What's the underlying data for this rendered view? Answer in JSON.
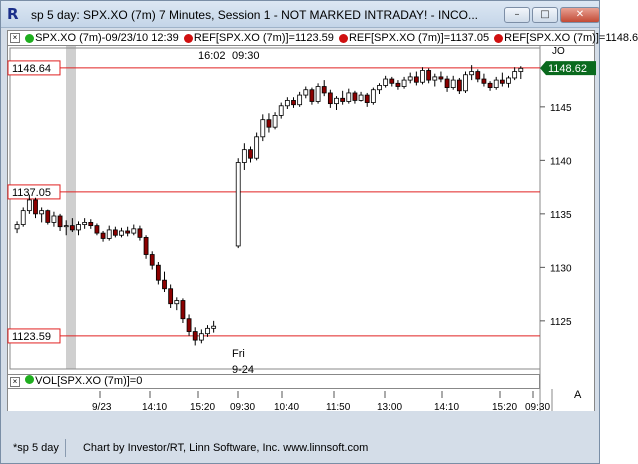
{
  "window": {
    "title": "sp 5 day: SPX.XO (7m) 7 Minutes, Session 1 - NOT MARKED INTRADAY! - INCO...",
    "minimize": "–",
    "maximize": "□",
    "close": "✕",
    "icon": "R"
  },
  "legend": {
    "items": [
      {
        "text": "SPX.XO (7m)-09/23/10 12:39",
        "dot": "#1fae1f"
      },
      {
        "text": "REF[SPX.XO (7m)]=1123.59",
        "dot": "#d01010"
      },
      {
        "text": "REF[SPX.XO (7m)]=1137.05",
        "dot": "#d01010"
      },
      {
        "text": "REF[SPX.XO (7m)]=1148.6",
        "dot": "#d01010"
      }
    ],
    "close_glyph": "×",
    "end_label": "JO"
  },
  "volume": {
    "label": "VOL[SPX.XO (7m)]=0",
    "dot": "#1fae1f",
    "corner_label": "A"
  },
  "status": {
    "tab": "*sp 5 day",
    "credit": "Chart by Investor/RT, Linn Software, Inc. www.linnsoft.com"
  },
  "colors": {
    "up": "#ffffff",
    "down": "#8b0000",
    "ref_line": "#e02020",
    "accent_green": "#1fae1f"
  },
  "annotations": {
    "top_time": "16:02",
    "top_time2": "09:30",
    "day": "Fri",
    "date": "9-24"
  },
  "chart_data": {
    "type": "candlestick",
    "y_ticks": [
      1125,
      1130,
      1135,
      1140,
      1145
    ],
    "ylim": [
      1120.5,
      1150.5
    ],
    "x_ticks": [
      "9/23",
      "14:10",
      "15:20",
      "09:30",
      "10:40",
      "11:50",
      "13:00",
      "14:10",
      "15:20",
      "09:30"
    ],
    "reference_lines": [
      {
        "value": 1148.64,
        "label": "1148.64"
      },
      {
        "value": 1137.05,
        "label": "1137.05"
      },
      {
        "value": 1123.59,
        "label": "1123.59"
      }
    ],
    "last_price": {
      "value": 1148.62,
      "label": "1148.62"
    },
    "candles": [
      [
        1133.6,
        1134.3,
        1133.2,
        1134.0
      ],
      [
        1134.0,
        1135.6,
        1133.8,
        1135.3
      ],
      [
        1135.3,
        1136.8,
        1135.0,
        1136.3
      ],
      [
        1136.3,
        1136.5,
        1134.6,
        1135.0
      ],
      [
        1135.0,
        1135.6,
        1134.2,
        1135.3
      ],
      [
        1135.3,
        1135.4,
        1134.0,
        1134.2
      ],
      [
        1134.2,
        1135.2,
        1133.8,
        1134.8
      ],
      [
        1134.8,
        1135.0,
        1133.4,
        1133.8
      ],
      [
        1133.8,
        1134.4,
        1133.0,
        1133.9
      ],
      [
        1133.9,
        1134.6,
        1133.3,
        1133.5
      ],
      [
        1133.5,
        1134.3,
        1133.0,
        1134.0
      ],
      [
        1134.0,
        1134.6,
        1133.6,
        1134.2
      ],
      [
        1134.2,
        1134.5,
        1133.6,
        1133.9
      ],
      [
        1133.9,
        1134.1,
        1133.0,
        1133.2
      ],
      [
        1133.2,
        1133.4,
        1132.4,
        1132.7
      ],
      [
        1132.7,
        1133.9,
        1132.5,
        1133.5
      ],
      [
        1133.5,
        1133.8,
        1132.8,
        1133.0
      ],
      [
        1133.0,
        1133.7,
        1132.8,
        1133.4
      ],
      [
        1133.4,
        1133.8,
        1132.9,
        1133.2
      ],
      [
        1133.2,
        1134.0,
        1133.0,
        1133.6
      ],
      [
        1133.6,
        1133.9,
        1132.5,
        1132.8
      ],
      [
        1132.8,
        1133.0,
        1130.8,
        1131.2
      ],
      [
        1131.2,
        1131.5,
        1129.8,
        1130.2
      ],
      [
        1130.2,
        1130.5,
        1128.4,
        1128.8
      ],
      [
        1128.8,
        1129.6,
        1127.7,
        1128.0
      ],
      [
        1128.0,
        1128.4,
        1126.2,
        1126.6
      ],
      [
        1126.6,
        1127.2,
        1126.0,
        1126.9
      ],
      [
        1126.9,
        1127.1,
        1124.8,
        1125.2
      ],
      [
        1125.2,
        1125.6,
        1123.6,
        1124.0
      ],
      [
        1124.0,
        1124.4,
        1122.7,
        1123.2
      ],
      [
        1123.2,
        1124.2,
        1122.9,
        1123.8
      ],
      [
        1123.8,
        1124.6,
        1123.5,
        1124.3
      ],
      [
        1124.3,
        1125.0,
        1123.9,
        1124.5
      ],
      [
        1132.0,
        1140.2,
        1131.8,
        1139.8
      ],
      [
        1139.8,
        1141.6,
        1139.1,
        1141.0
      ],
      [
        1141.0,
        1141.3,
        1139.8,
        1140.2
      ],
      [
        1140.2,
        1142.6,
        1140.0,
        1142.2
      ],
      [
        1142.2,
        1144.3,
        1141.8,
        1143.8
      ],
      [
        1143.8,
        1144.4,
        1142.6,
        1143.1
      ],
      [
        1143.1,
        1144.5,
        1142.9,
        1144.2
      ],
      [
        1144.2,
        1145.4,
        1143.9,
        1145.1
      ],
      [
        1145.1,
        1145.9,
        1144.8,
        1145.6
      ],
      [
        1145.6,
        1145.9,
        1144.9,
        1145.2
      ],
      [
        1145.2,
        1146.4,
        1145.0,
        1146.1
      ],
      [
        1146.1,
        1146.9,
        1145.8,
        1146.6
      ],
      [
        1146.6,
        1146.8,
        1145.2,
        1145.5
      ],
      [
        1145.5,
        1147.2,
        1145.3,
        1146.9
      ],
      [
        1146.9,
        1147.5,
        1146.0,
        1146.3
      ],
      [
        1146.3,
        1146.6,
        1144.9,
        1145.3
      ],
      [
        1145.3,
        1146.0,
        1144.7,
        1145.8
      ],
      [
        1145.8,
        1146.5,
        1145.2,
        1145.5
      ],
      [
        1145.5,
        1146.7,
        1145.3,
        1146.3
      ],
      [
        1146.3,
        1146.5,
        1145.3,
        1145.6
      ],
      [
        1145.6,
        1146.4,
        1145.5,
        1146.1
      ],
      [
        1146.1,
        1146.3,
        1145.0,
        1145.4
      ],
      [
        1145.4,
        1146.8,
        1145.2,
        1146.6
      ],
      [
        1146.6,
        1147.2,
        1146.2,
        1147.0
      ],
      [
        1147.0,
        1147.9,
        1146.8,
        1147.6
      ],
      [
        1147.6,
        1147.8,
        1146.9,
        1147.2
      ],
      [
        1147.2,
        1147.5,
        1146.6,
        1146.9
      ],
      [
        1146.9,
        1147.8,
        1146.7,
        1147.5
      ],
      [
        1147.5,
        1148.2,
        1147.2,
        1147.8
      ],
      [
        1147.8,
        1148.3,
        1147.0,
        1147.3
      ],
      [
        1147.3,
        1148.7,
        1147.1,
        1148.4
      ],
      [
        1148.4,
        1148.6,
        1147.2,
        1147.5
      ],
      [
        1147.5,
        1148.1,
        1146.9,
        1147.8
      ],
      [
        1147.8,
        1148.3,
        1147.3,
        1147.6
      ],
      [
        1147.6,
        1147.9,
        1146.4,
        1146.8
      ],
      [
        1146.8,
        1147.9,
        1146.6,
        1147.5
      ],
      [
        1147.5,
        1147.7,
        1146.2,
        1146.5
      ],
      [
        1146.5,
        1148.3,
        1146.3,
        1148.0
      ],
      [
        1148.0,
        1148.9,
        1147.5,
        1148.3
      ],
      [
        1148.3,
        1148.5,
        1147.3,
        1147.6
      ],
      [
        1147.6,
        1148.1,
        1146.9,
        1147.2
      ],
      [
        1147.2,
        1147.4,
        1146.5,
        1146.8
      ],
      [
        1146.8,
        1147.8,
        1146.6,
        1147.5
      ],
      [
        1147.5,
        1148.2,
        1146.9,
        1147.2
      ],
      [
        1147.2,
        1147.9,
        1146.8,
        1147.7
      ],
      [
        1147.7,
        1148.7,
        1147.5,
        1148.3
      ],
      [
        1148.3,
        1148.8,
        1147.6,
        1148.6
      ]
    ]
  }
}
